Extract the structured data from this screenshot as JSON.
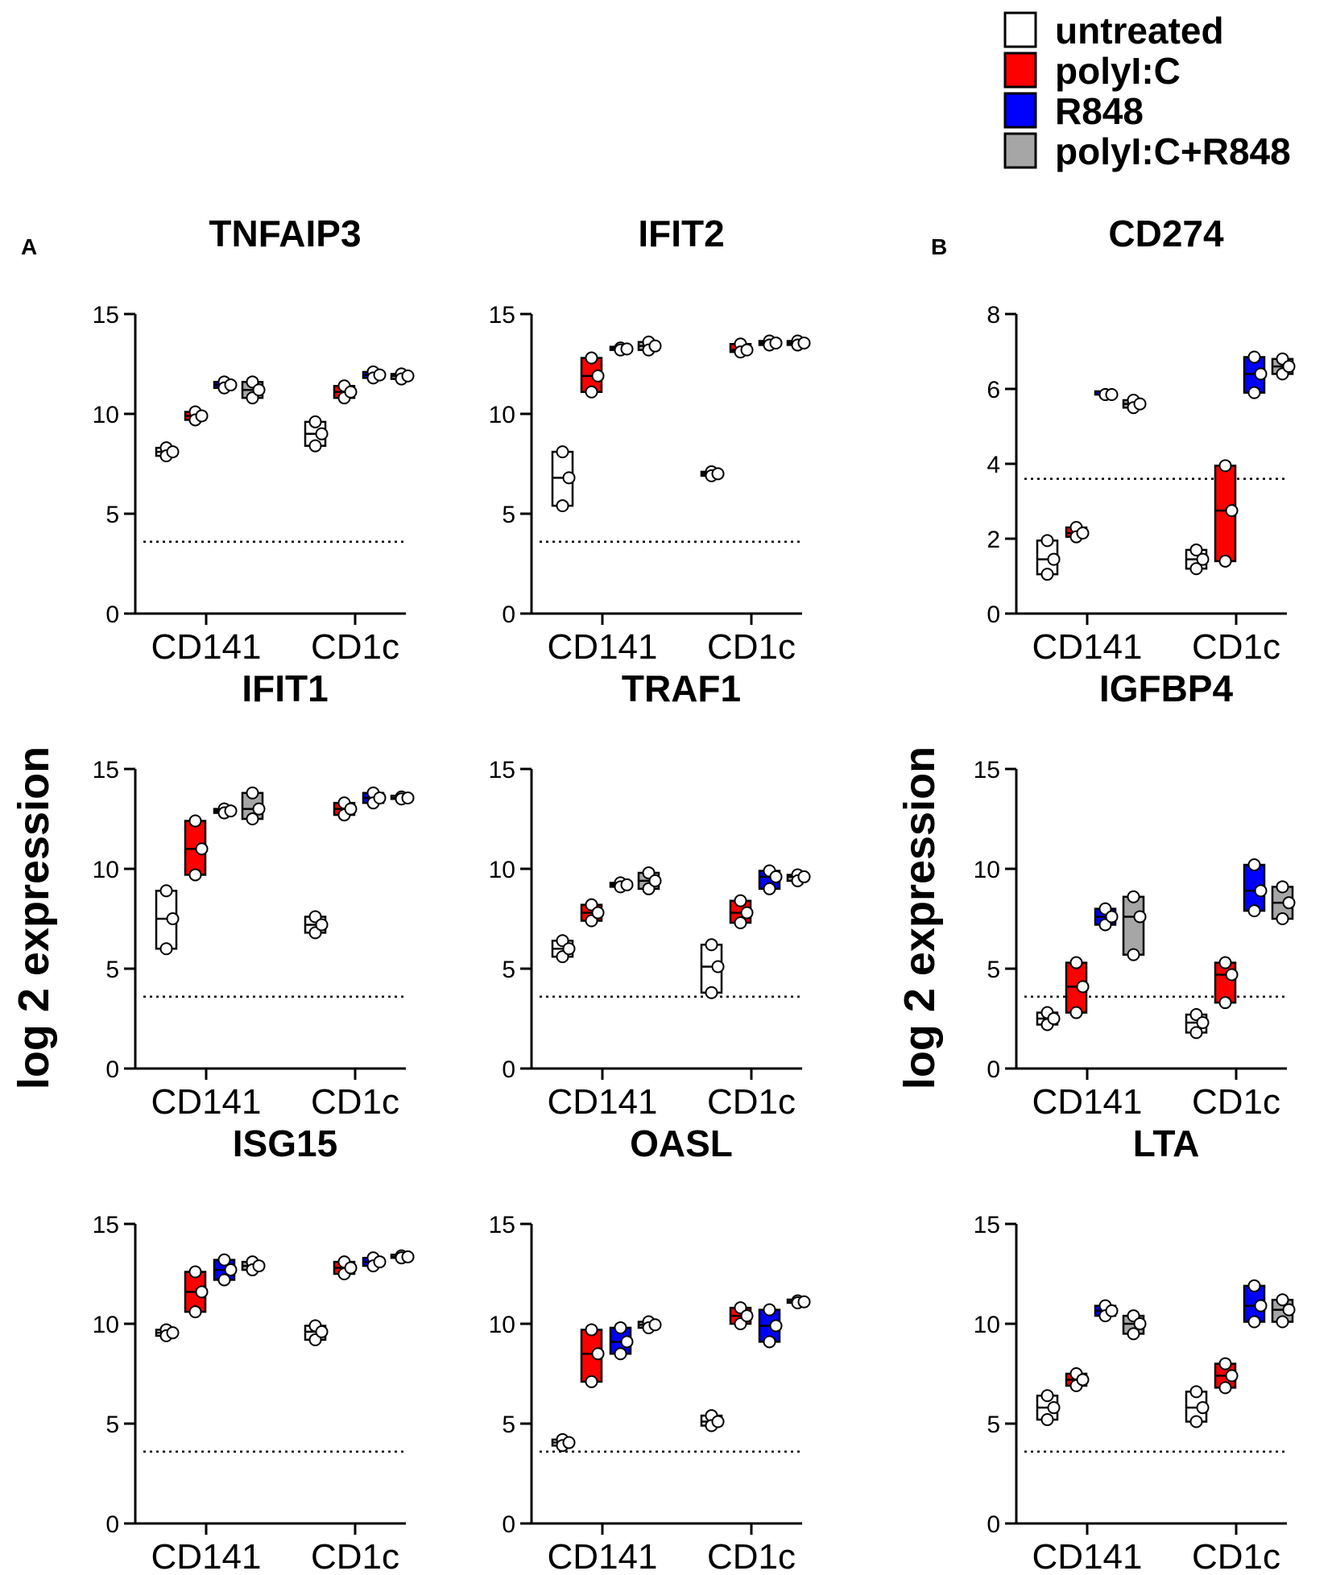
{
  "legend": {
    "items": [
      {
        "label": "untreated",
        "color": "#ffffff"
      },
      {
        "label": "polyI:C",
        "color": "#ff0000"
      },
      {
        "label": "R848",
        "color": "#0000ff"
      },
      {
        "label": "polyI:C+R848",
        "color": "#a6a6a6"
      }
    ]
  },
  "panel_labels": [
    "A",
    "B"
  ],
  "ylabel": "log 2 expression",
  "chart_data": [
    {
      "type": "floating-bar",
      "title": "TNFAIP3",
      "ylim": [
        0,
        15
      ],
      "yticks": [
        0,
        5,
        10,
        15
      ],
      "threshold": 3.6,
      "categories": [
        "CD141",
        "CD1c"
      ],
      "series": [
        {
          "name": "untreated",
          "values": [
            [
              7.9,
              8.1,
              8.3
            ],
            [
              8.4,
              9.0,
              9.6
            ]
          ]
        },
        {
          "name": "polyI:C",
          "values": [
            [
              9.7,
              9.9,
              10.1
            ],
            [
              10.8,
              11.1,
              11.4
            ]
          ]
        },
        {
          "name": "R848",
          "values": [
            [
              11.3,
              11.45,
              11.6
            ],
            [
              11.8,
              11.95,
              12.1
            ]
          ]
        },
        {
          "name": "polyI:C+R848",
          "values": [
            [
              10.8,
              11.2,
              11.6
            ],
            [
              11.75,
              11.9,
              12.0
            ]
          ]
        }
      ]
    },
    {
      "type": "floating-bar",
      "title": "IFIT2",
      "ylim": [
        0,
        15
      ],
      "yticks": [
        0,
        5,
        10,
        15
      ],
      "threshold": 3.6,
      "categories": [
        "CD141",
        "CD1c"
      ],
      "series": [
        {
          "name": "untreated",
          "values": [
            [
              5.4,
              6.8,
              8.1
            ],
            [
              6.9,
              7.0,
              7.1
            ]
          ]
        },
        {
          "name": "polyI:C",
          "values": [
            [
              11.1,
              11.9,
              12.8
            ],
            [
              13.1,
              13.2,
              13.5
            ]
          ]
        },
        {
          "name": "R848",
          "values": [
            [
              13.2,
              13.25,
              13.3
            ],
            [
              13.45,
              13.55,
              13.65
            ]
          ]
        },
        {
          "name": "polyI:C+R848",
          "values": [
            [
              13.2,
              13.4,
              13.6
            ],
            [
              13.45,
              13.55,
              13.65
            ]
          ]
        }
      ]
    },
    {
      "type": "floating-bar",
      "title": "CD274",
      "ylim": [
        0,
        8
      ],
      "yticks": [
        0,
        2,
        4,
        6,
        8
      ],
      "threshold": 3.6,
      "categories": [
        "CD141",
        "CD1c"
      ],
      "series": [
        {
          "name": "untreated",
          "values": [
            [
              1.05,
              1.45,
              1.95
            ],
            [
              1.2,
              1.45,
              1.7
            ]
          ]
        },
        {
          "name": "polyI:C",
          "values": [
            [
              2.05,
              2.15,
              2.3
            ],
            [
              1.4,
              2.75,
              3.95
            ]
          ]
        },
        {
          "name": "R848",
          "values": [
            [
              5.85,
              5.85,
              5.85
            ],
            [
              5.9,
              6.4,
              6.85
            ]
          ]
        },
        {
          "name": "polyI:C+R848",
          "values": [
            [
              5.5,
              5.6,
              5.7
            ],
            [
              6.4,
              6.6,
              6.8
            ]
          ]
        }
      ]
    },
    {
      "type": "floating-bar",
      "title": "IFIT1",
      "ylim": [
        0,
        15
      ],
      "yticks": [
        0,
        5,
        10,
        15
      ],
      "threshold": 3.6,
      "categories": [
        "CD141",
        "CD1c"
      ],
      "series": [
        {
          "name": "untreated",
          "values": [
            [
              6.0,
              7.5,
              8.9
            ],
            [
              6.8,
              7.2,
              7.6
            ]
          ]
        },
        {
          "name": "polyI:C",
          "values": [
            [
              9.7,
              11.0,
              12.4
            ],
            [
              12.7,
              13.0,
              13.3
            ]
          ]
        },
        {
          "name": "R848",
          "values": [
            [
              12.8,
              12.9,
              13.0
            ],
            [
              13.3,
              13.55,
              13.8
            ]
          ]
        },
        {
          "name": "polyI:C+R848",
          "values": [
            [
              12.5,
              13.0,
              13.8
            ],
            [
              13.5,
              13.55,
              13.6
            ]
          ]
        }
      ]
    },
    {
      "type": "floating-bar",
      "title": "TRAF1",
      "ylim": [
        0,
        15
      ],
      "yticks": [
        0,
        5,
        10,
        15
      ],
      "threshold": 3.6,
      "categories": [
        "CD141",
        "CD1c"
      ],
      "series": [
        {
          "name": "untreated",
          "values": [
            [
              5.6,
              6.0,
              6.4
            ],
            [
              3.8,
              5.1,
              6.2
            ]
          ]
        },
        {
          "name": "polyI:C",
          "values": [
            [
              7.4,
              7.8,
              8.2
            ],
            [
              7.3,
              7.8,
              8.4
            ]
          ]
        },
        {
          "name": "R848",
          "values": [
            [
              9.1,
              9.2,
              9.3
            ],
            [
              9.0,
              9.6,
              9.9
            ]
          ]
        },
        {
          "name": "polyI:C+R848",
          "values": [
            [
              9.0,
              9.4,
              9.8
            ],
            [
              9.4,
              9.6,
              9.7
            ]
          ]
        }
      ]
    },
    {
      "type": "floating-bar",
      "title": "IGFBP4",
      "ylim": [
        0,
        15
      ],
      "yticks": [
        0,
        5,
        10,
        15
      ],
      "threshold": 3.6,
      "categories": [
        "CD141",
        "CD1c"
      ],
      "series": [
        {
          "name": "untreated",
          "values": [
            [
              2.2,
              2.5,
              2.8
            ],
            [
              1.8,
              2.3,
              2.7
            ]
          ]
        },
        {
          "name": "polyI:C",
          "values": [
            [
              2.8,
              4.1,
              5.3
            ],
            [
              3.3,
              4.7,
              5.3
            ]
          ]
        },
        {
          "name": "R848",
          "values": [
            [
              7.2,
              7.6,
              8.0
            ],
            [
              7.9,
              8.9,
              10.2
            ]
          ]
        },
        {
          "name": "polyI:C+R848",
          "values": [
            [
              5.7,
              7.6,
              8.6
            ],
            [
              7.5,
              8.3,
              9.1
            ]
          ]
        }
      ]
    },
    {
      "type": "floating-bar",
      "title": "ISG15",
      "ylim": [
        0,
        15
      ],
      "yticks": [
        0,
        5,
        10,
        15
      ],
      "threshold": 3.6,
      "categories": [
        "CD141",
        "CD1c"
      ],
      "series": [
        {
          "name": "untreated",
          "values": [
            [
              9.4,
              9.55,
              9.7
            ],
            [
              9.2,
              9.6,
              9.9
            ]
          ]
        },
        {
          "name": "polyI:C",
          "values": [
            [
              10.6,
              11.6,
              12.6
            ],
            [
              12.5,
              12.8,
              13.1
            ]
          ]
        },
        {
          "name": "R848",
          "values": [
            [
              12.2,
              12.7,
              13.2
            ],
            [
              12.9,
              13.1,
              13.3
            ]
          ]
        },
        {
          "name": "polyI:C+R848",
          "values": [
            [
              12.7,
              12.9,
              13.1
            ],
            [
              13.3,
              13.35,
              13.4
            ]
          ]
        }
      ]
    },
    {
      "type": "floating-bar",
      "title": "OASL",
      "ylim": [
        0,
        15
      ],
      "yticks": [
        0,
        5,
        10,
        15
      ],
      "threshold": 3.6,
      "categories": [
        "CD141",
        "CD1c"
      ],
      "series": [
        {
          "name": "untreated",
          "values": [
            [
              3.9,
              4.05,
              4.2
            ],
            [
              4.9,
              5.1,
              5.4
            ]
          ]
        },
        {
          "name": "polyI:C",
          "values": [
            [
              7.1,
              8.5,
              9.7
            ],
            [
              10.0,
              10.4,
              10.8
            ]
          ]
        },
        {
          "name": "R848",
          "values": [
            [
              8.5,
              9.1,
              9.8
            ],
            [
              9.1,
              9.9,
              10.7
            ]
          ]
        },
        {
          "name": "polyI:C+R848",
          "values": [
            [
              9.8,
              9.95,
              10.1
            ],
            [
              11.05,
              11.1,
              11.15
            ]
          ]
        }
      ]
    },
    {
      "type": "floating-bar",
      "title": "LTA",
      "ylim": [
        0,
        15
      ],
      "yticks": [
        0,
        5,
        10,
        15
      ],
      "threshold": 3.6,
      "categories": [
        "CD141",
        "CD1c"
      ],
      "series": [
        {
          "name": "untreated",
          "values": [
            [
              5.2,
              5.8,
              6.4
            ],
            [
              5.1,
              5.8,
              6.6
            ]
          ]
        },
        {
          "name": "polyI:C",
          "values": [
            [
              6.9,
              7.2,
              7.5
            ],
            [
              6.8,
              7.4,
              8.0
            ]
          ]
        },
        {
          "name": "R848",
          "values": [
            [
              10.4,
              10.65,
              10.9
            ],
            [
              10.1,
              10.9,
              11.9
            ]
          ]
        },
        {
          "name": "polyI:C+R848",
          "values": [
            [
              9.5,
              10.0,
              10.4
            ],
            [
              10.1,
              10.7,
              11.2
            ]
          ]
        }
      ]
    }
  ]
}
